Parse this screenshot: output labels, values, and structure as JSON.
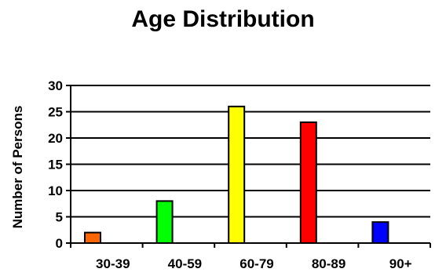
{
  "chart_data": {
    "type": "bar",
    "title": "Age Distribution",
    "xlabel": "",
    "ylabel": "Number of Persons",
    "categories": [
      "30-39",
      "40-59",
      "60-79",
      "80-89",
      "90+"
    ],
    "values": [
      2,
      8,
      26,
      23,
      4
    ],
    "colors": [
      "#ff6600",
      "#00ff00",
      "#ffff00",
      "#ff0000",
      "#0000ff"
    ],
    "ylim": [
      0,
      30
    ],
    "yticks": [
      0,
      5,
      10,
      15,
      20,
      25,
      30
    ],
    "grid": true,
    "legend": "none"
  }
}
